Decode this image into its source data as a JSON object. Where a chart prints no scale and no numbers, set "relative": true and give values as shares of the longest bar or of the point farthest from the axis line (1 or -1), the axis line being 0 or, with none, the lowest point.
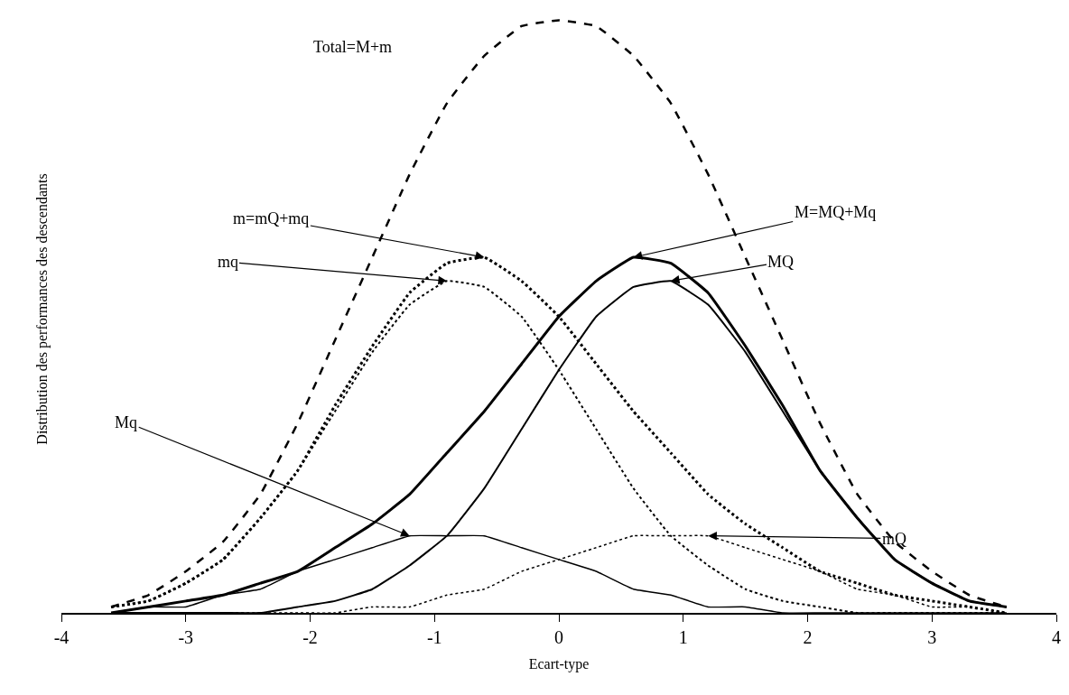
{
  "chart_data": {
    "type": "line",
    "xlabel": "Ecart-type",
    "ylabel": "Distribution des performances des descendants",
    "relative": true,
    "grid": false,
    "tick_labels": "x",
    "marker": "none",
    "x": [
      -3.6,
      -3.3,
      -3.0,
      -2.7,
      -2.4,
      -2.1,
      -1.8,
      -1.5,
      -1.2,
      -0.9,
      -0.6,
      -0.3,
      0,
      0.3,
      0.6,
      0.9,
      1.2,
      1.5,
      1.8,
      2.1,
      2.4,
      2.7,
      3.0,
      3.3,
      3.6
    ],
    "xlim": [
      -4,
      4
    ],
    "xticks": [
      -4,
      -3,
      -2,
      -1,
      0,
      1,
      2,
      3,
      4
    ],
    "series": [
      {
        "color": "#000000",
        "line_style": "dashed",
        "values": [
          0.01,
          0.03,
          0.07,
          0.12,
          0.2,
          0.32,
          0.46,
          0.6,
          0.74,
          0.86,
          0.94,
          0.99,
          1,
          0.99,
          0.94,
          0.86,
          0.74,
          0.6,
          0.46,
          0.32,
          0.2,
          0.12,
          0.07,
          0.03,
          0.01
        ]
      },
      {
        "color": "#000000",
        "line_style": "solid",
        "values": [
          0,
          0.01,
          0.02,
          0.03,
          0.05,
          0.07,
          0.11,
          0.15,
          0.2,
          0.27,
          0.34,
          0.42,
          0.5,
          0.56,
          0.6,
          0.59,
          0.54,
          0.45,
          0.35,
          0.24,
          0.16,
          0.09,
          0.05,
          0.02,
          0.01
        ]
      },
      {
        "color": "#000000",
        "line_style": "solid",
        "values": [
          0,
          0,
          0,
          0,
          0,
          0.01,
          0.02,
          0.04,
          0.08,
          0.13,
          0.21,
          0.31,
          0.41,
          0.5,
          0.55,
          0.56,
          0.52,
          0.44,
          0.34,
          0.24,
          0.16,
          0.09,
          0.05,
          0.02,
          0.01
        ]
      },
      {
        "color": "#000000",
        "line_style": "solid",
        "values": [
          0,
          0.01,
          0.01,
          0.03,
          0.04,
          0.07,
          0.09,
          0.11,
          0.13,
          0.13,
          0.13,
          0.11,
          0.09,
          0.07,
          0.04,
          0.03,
          0.01,
          0.01,
          0,
          0,
          0,
          0,
          0,
          0,
          0
        ]
      },
      {
        "color": "#000000",
        "line_style": "dotted",
        "values": [
          0.01,
          0.02,
          0.05,
          0.09,
          0.16,
          0.24,
          0.35,
          0.45,
          0.54,
          0.59,
          0.6,
          0.56,
          0.5,
          0.42,
          0.34,
          0.27,
          0.2,
          0.15,
          0.11,
          0.07,
          0.05,
          0.03,
          0.02,
          0.01,
          0
        ]
      },
      {
        "color": "#000000",
        "line_style": "dotted",
        "values": [
          0.01,
          0.02,
          0.05,
          0.09,
          0.16,
          0.24,
          0.34,
          0.44,
          0.52,
          0.56,
          0.55,
          0.5,
          0.41,
          0.31,
          0.21,
          0.13,
          0.08,
          0.04,
          0.02,
          0.01,
          0,
          0,
          0,
          0,
          0
        ]
      },
      {
        "color": "#000000",
        "line_style": "dotted",
        "values": [
          0,
          0,
          0,
          0,
          0,
          0,
          0,
          0.01,
          0.01,
          0.03,
          0.04,
          0.07,
          0.09,
          0.11,
          0.13,
          0.13,
          0.13,
          0.11,
          0.09,
          0.07,
          0.04,
          0.03,
          0.01,
          0.01,
          0
        ]
      }
    ],
    "annotations": [
      "Total=M+m",
      {
        "text": "m=mQ+mq",
        "x": -0.6,
        "y": 0.6
      },
      {
        "text": "mq",
        "x": -0.9,
        "y": 0.56
      },
      {
        "text": "M=MQ+Mq",
        "x": 0.6,
        "y": 0.6
      },
      {
        "text": "MQ",
        "x": 0.9,
        "y": 0.56
      },
      {
        "text": "Mq",
        "x": -1.2,
        "y": 0.13
      },
      {
        "text": "mQ",
        "x": 1.2,
        "y": 0.13
      }
    ]
  }
}
